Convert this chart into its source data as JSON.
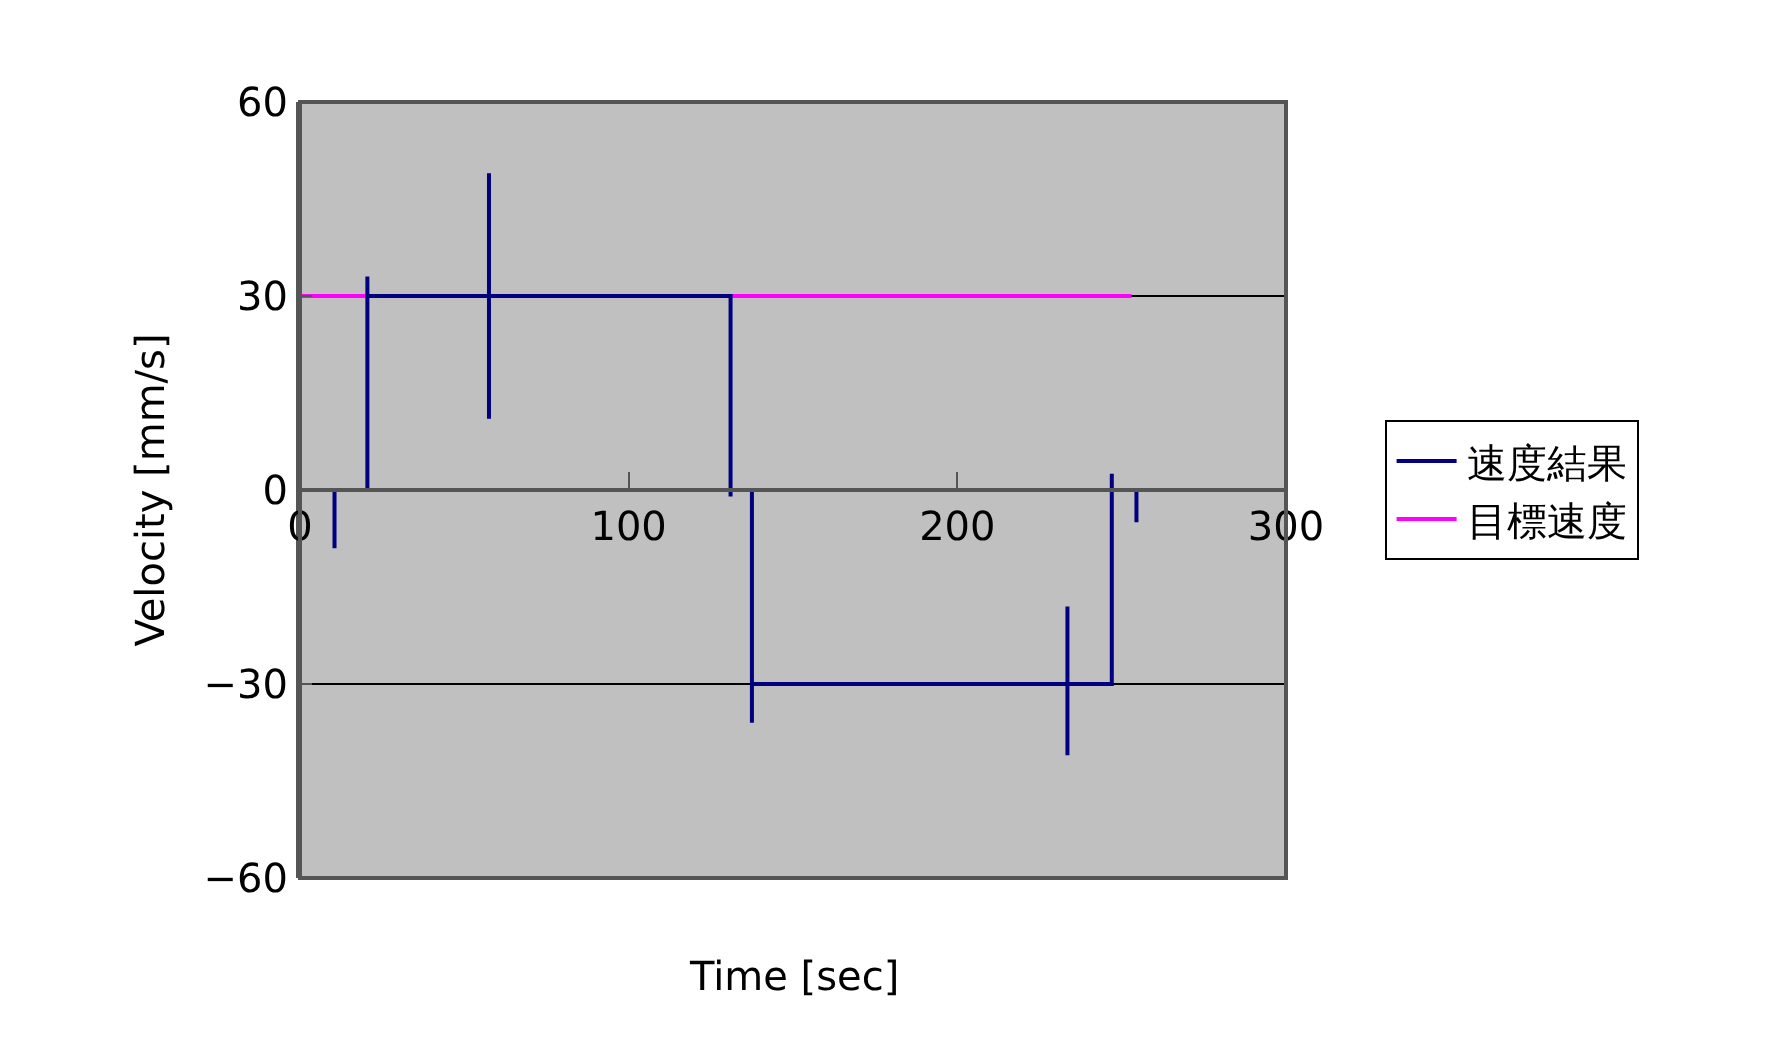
{
  "chart_data": {
    "type": "line",
    "xlabel": "Time [sec]",
    "ylabel": "Velocity [mm/s]",
    "xlim": [
      0,
      300
    ],
    "xticks": [
      0,
      100,
      200,
      300
    ],
    "ylim": [
      -60,
      60
    ],
    "yticks": [
      {
        "value": -60,
        "label": "−60"
      },
      {
        "value": -30,
        "label": "−30"
      },
      0,
      30,
      60
    ],
    "grid": "y",
    "legend": "right",
    "marker": "none",
    "line_style": "solid",
    "series": [
      {
        "name": "速度結果",
        "color": "#000080",
        "x": [
          0,
          10.5,
          10.5,
          10.5,
          20.5,
          20.5,
          20.5,
          57.5,
          57.5,
          57.5,
          57.5,
          131,
          131,
          131,
          137.5,
          137.5,
          137.5,
          233.5,
          233.5,
          233.5,
          233.5,
          247,
          247,
          247,
          254.5,
          254.5,
          254.5,
          255
        ],
        "values": [
          0,
          0,
          -9,
          0,
          0,
          33,
          30,
          30,
          49,
          11,
          30,
          30,
          -1,
          0,
          0,
          -36,
          -30,
          -30,
          -18,
          -41,
          -30,
          -30,
          2.5,
          0,
          0,
          -5,
          0,
          0
        ]
      },
      {
        "name": "目標速度",
        "color": "#ff00ff",
        "x": [
          0,
          253
        ],
        "values": [
          30,
          30
        ]
      }
    ]
  }
}
